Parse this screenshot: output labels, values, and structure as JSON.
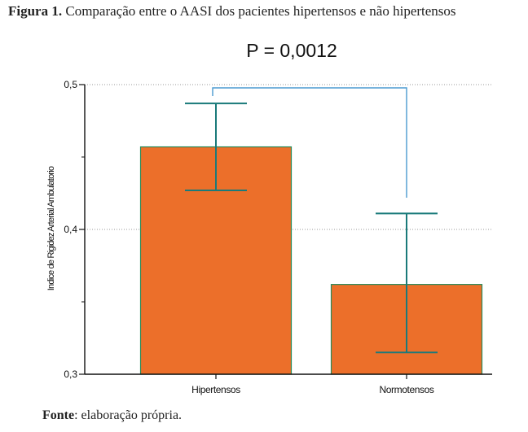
{
  "figure": {
    "label": "Figura 1.",
    "caption": "Comparação entre o AASI dos pacientes hipertensos e não hipertensos"
  },
  "source": {
    "label": "Fonte",
    "text": ": elaboração própria."
  },
  "chart_data": {
    "type": "bar",
    "title": "P = 0,0012",
    "ylabel": "Indice de Rigidez Arterial Ambulatorio",
    "xlabel": "",
    "categories": [
      "Hipertensos",
      "Normotensos"
    ],
    "values": [
      0.457,
      0.362
    ],
    "error_bars": {
      "upper": [
        0.487,
        0.411
      ],
      "lower": [
        0.427,
        0.315
      ]
    },
    "ylim": [
      0.3,
      0.5
    ],
    "y_ticks": [
      0.3,
      0.4,
      0.5
    ],
    "y_tick_labels": [
      "0,3",
      "0,4",
      "0,5"
    ],
    "grid": true,
    "bar_color": "#ec6f2a",
    "bar_edge_color": "#2a8a5a",
    "error_bar_color": "#1a7a7a",
    "bracket_color": "#4a9ad0"
  }
}
